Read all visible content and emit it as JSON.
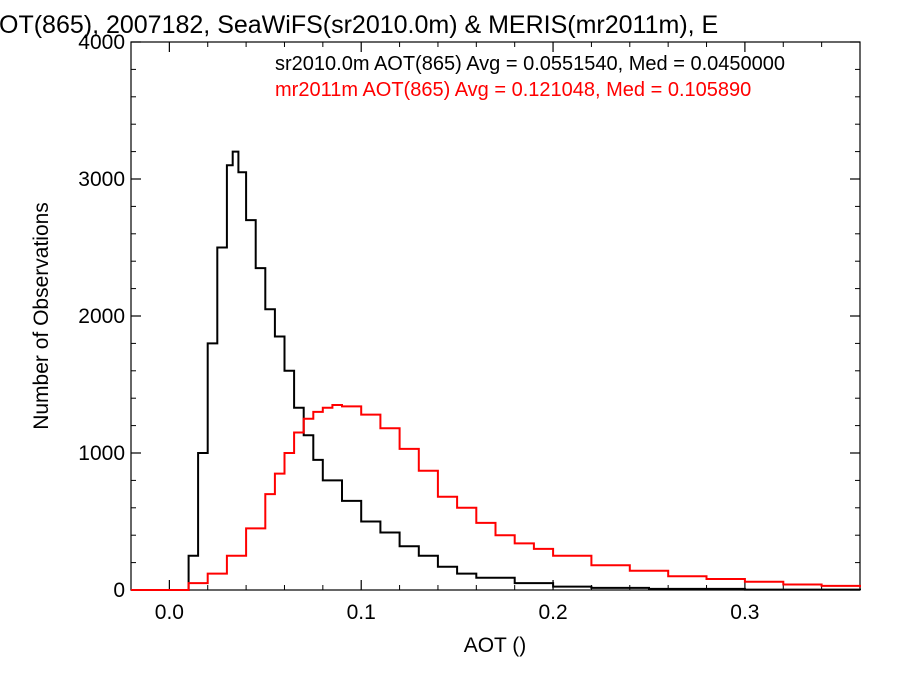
{
  "chart_data": {
    "type": "line",
    "step": true,
    "title": "OT(865), 2007182, SeaWiFS(sr2010.0m) & MERIS(mr2011m), E",
    "xlabel": "AOT ()",
    "ylabel": "Number of Observations",
    "xlim": [
      -0.02,
      0.36
    ],
    "ylim": [
      0,
      4000
    ],
    "xticks": [
      {
        "value": 0.0,
        "label": "0.0"
      },
      {
        "value": 0.1,
        "label": "0.1"
      },
      {
        "value": 0.2,
        "label": "0.2"
      },
      {
        "value": 0.3,
        "label": "0.3"
      }
    ],
    "yticks": [
      {
        "value": 0,
        "label": "0"
      },
      {
        "value": 1000,
        "label": "1000"
      },
      {
        "value": 2000,
        "label": "2000"
      },
      {
        "value": 3000,
        "label": "3000"
      },
      {
        "value": 4000,
        "label": "4000"
      }
    ],
    "annotations": [
      {
        "text": "sr2010.0m AOT(865) Avg = 0.0551540, Med = 0.0450000",
        "color": "#000000"
      },
      {
        "text": "mr2011m AOT(865) Avg = 0.121048, Med = 0.105890",
        "color": "#ff0000"
      }
    ],
    "series": [
      {
        "color": "#000000",
        "x": [
          -0.02,
          0.0,
          0.005,
          0.01,
          0.015,
          0.02,
          0.025,
          0.03,
          0.033,
          0.036,
          0.04,
          0.045,
          0.05,
          0.055,
          0.06,
          0.065,
          0.07,
          0.075,
          0.08,
          0.09,
          0.1,
          0.11,
          0.12,
          0.13,
          0.14,
          0.15,
          0.16,
          0.18,
          0.2,
          0.22,
          0.25,
          0.3,
          0.36
        ],
        "values": [
          0,
          0,
          0,
          250,
          1000,
          1800,
          2500,
          3100,
          3200,
          3050,
          2700,
          2350,
          2050,
          1850,
          1600,
          1330,
          1130,
          950,
          800,
          650,
          500,
          420,
          320,
          250,
          170,
          120,
          90,
          50,
          25,
          15,
          8,
          3,
          0
        ]
      },
      {
        "color": "#ff0000",
        "x": [
          -0.02,
          0.0,
          0.01,
          0.02,
          0.03,
          0.04,
          0.05,
          0.055,
          0.06,
          0.065,
          0.07,
          0.075,
          0.08,
          0.085,
          0.09,
          0.1,
          0.11,
          0.12,
          0.13,
          0.14,
          0.15,
          0.16,
          0.17,
          0.18,
          0.19,
          0.2,
          0.22,
          0.24,
          0.26,
          0.28,
          0.3,
          0.32,
          0.34,
          0.36
        ],
        "values": [
          0,
          0,
          50,
          120,
          250,
          450,
          700,
          850,
          1000,
          1150,
          1250,
          1300,
          1330,
          1350,
          1340,
          1280,
          1180,
          1030,
          870,
          680,
          600,
          490,
          400,
          340,
          300,
          250,
          180,
          140,
          100,
          80,
          60,
          40,
          30,
          20
        ]
      }
    ]
  }
}
